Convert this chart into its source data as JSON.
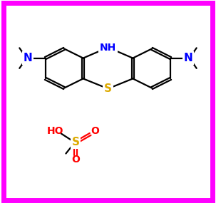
{
  "background_color": "#ffffff",
  "border_color": "#ff00ff",
  "border_width": 5,
  "fig_width": 3.03,
  "fig_height": 2.85,
  "dpi": 100,
  "atom_colors": {
    "N": "#0000ff",
    "S": "#ccaa00",
    "O": "#ff0000",
    "C": "#000000"
  },
  "bond_color": "#000000",
  "bond_lw": 1.6,
  "S_color": "#ddaa00"
}
